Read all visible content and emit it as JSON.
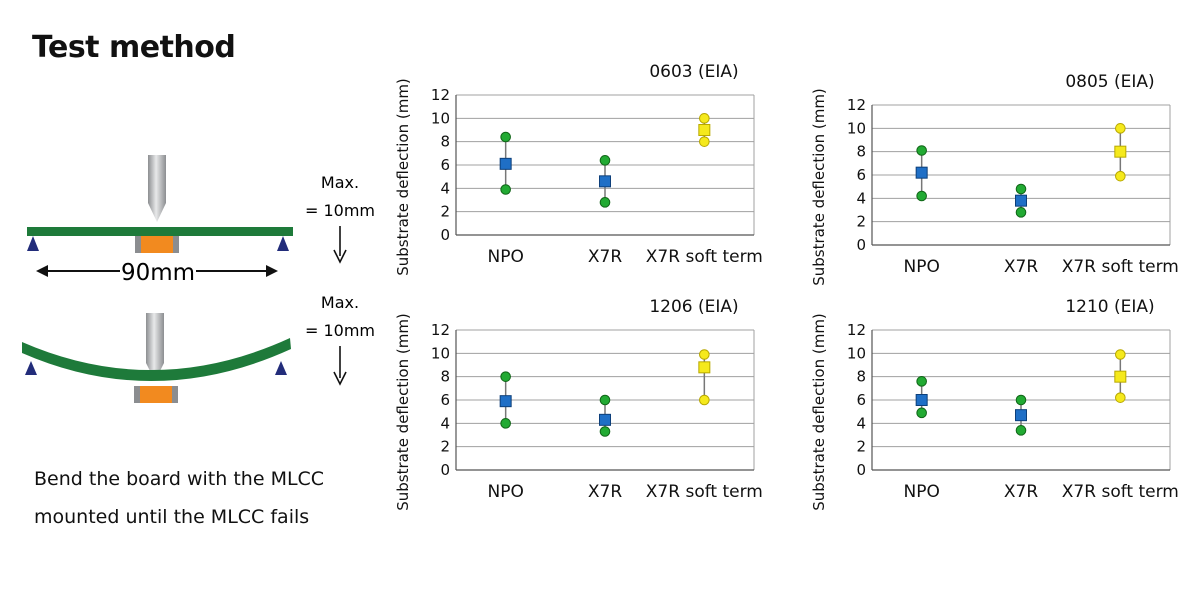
{
  "page": {
    "title": "Test method"
  },
  "diagram": {
    "max_label_line1": "Max.",
    "max_label_line2": "= 10mm",
    "span_label": "90mm",
    "description_line1": "Bend the board with the MLCC",
    "description_line2": "mounted until the MLCC fails",
    "colors": {
      "board": "#1e7a3a",
      "component": "#f28a1f",
      "probe": "#b5b7ba",
      "support": "#222c7a"
    }
  },
  "chart_data": [
    {
      "type": "scatter",
      "title": "0603 (EIA)",
      "ylabel": "Substrate deflection (mm)",
      "xlabel": "",
      "categories": [
        "NPO",
        "X7R",
        "X7R soft term"
      ],
      "ylim": [
        0,
        12
      ],
      "yticks": [
        0,
        2,
        4,
        6,
        8,
        10,
        12
      ],
      "grid": true,
      "series": [
        {
          "values": [
            8.4,
            6.4,
            10.0
          ],
          "marker": "circle"
        },
        {
          "values": [
            6.1,
            4.6,
            9.0
          ],
          "marker": "square"
        },
        {
          "values": [
            3.9,
            2.8,
            8.0
          ],
          "marker": "circle"
        }
      ]
    },
    {
      "type": "scatter",
      "title": "0805 (EIA)",
      "ylabel": "Substrate deflection (mm)",
      "xlabel": "",
      "categories": [
        "NPO",
        "X7R",
        "X7R soft term"
      ],
      "ylim": [
        0,
        12
      ],
      "yticks": [
        0,
        2,
        4,
        6,
        8,
        10,
        12
      ],
      "grid": true,
      "series": [
        {
          "values": [
            8.1,
            4.8,
            10.0
          ],
          "marker": "circle"
        },
        {
          "values": [
            6.2,
            3.8,
            8.0
          ],
          "marker": "square"
        },
        {
          "values": [
            4.2,
            2.8,
            5.9
          ],
          "marker": "circle"
        }
      ]
    },
    {
      "type": "scatter",
      "title": "1206 (EIA)",
      "ylabel": "Substrate deflection (mm)",
      "xlabel": "",
      "categories": [
        "NPO",
        "X7R",
        "X7R soft term"
      ],
      "ylim": [
        0,
        12
      ],
      "yticks": [
        0,
        2,
        4,
        6,
        8,
        10,
        12
      ],
      "grid": true,
      "series": [
        {
          "values": [
            8.0,
            6.0,
            9.9
          ],
          "marker": "circle"
        },
        {
          "values": [
            5.9,
            4.3,
            8.8
          ],
          "marker": "square"
        },
        {
          "values": [
            4.0,
            3.3,
            6.0
          ],
          "marker": "circle"
        }
      ]
    },
    {
      "type": "scatter",
      "title": "1210 (EIA)",
      "ylabel": "Substrate deflection (mm)",
      "xlabel": "",
      "categories": [
        "NPO",
        "X7R",
        "X7R soft term"
      ],
      "ylim": [
        0,
        12
      ],
      "yticks": [
        0,
        2,
        4,
        6,
        8,
        10,
        12
      ],
      "grid": true,
      "series": [
        {
          "values": [
            7.6,
            6.0,
            9.9
          ],
          "marker": "circle"
        },
        {
          "values": [
            6.0,
            4.7,
            8.0
          ],
          "marker": "square"
        },
        {
          "values": [
            4.9,
            3.4,
            6.2
          ],
          "marker": "circle"
        }
      ]
    }
  ],
  "colors": {
    "range_point": "#22aa33",
    "npo_x7r_mean": "#1f6fc6",
    "soft_term": "#f5e91c",
    "grid": "#a0a0a0",
    "axis": "#555555"
  }
}
